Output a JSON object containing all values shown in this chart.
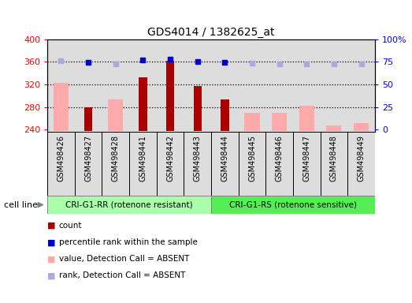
{
  "title": "GDS4014 / 1382625_at",
  "samples": [
    "GSM498426",
    "GSM498427",
    "GSM498428",
    "GSM498441",
    "GSM498442",
    "GSM498443",
    "GSM498444",
    "GSM498445",
    "GSM498446",
    "GSM498447",
    "GSM498448",
    "GSM498449"
  ],
  "group1_count": 6,
  "group2_count": 6,
  "group1_label": "CRI-G1-RR (rotenone resistant)",
  "group2_label": "CRI-G1-RS (rotenone sensitive)",
  "cell_line_label": "cell line",
  "count_values": [
    null,
    280,
    null,
    332,
    362,
    317,
    293,
    null,
    null,
    null,
    null,
    null
  ],
  "rank_values": [
    null,
    359,
    null,
    363,
    365,
    360,
    359,
    null,
    null,
    null,
    null,
    null
  ],
  "absent_value_values": [
    323,
    null,
    293,
    null,
    null,
    null,
    null,
    270,
    270,
    282,
    247,
    252
  ],
  "absent_rank_values": [
    362,
    null,
    357,
    null,
    null,
    null,
    null,
    358,
    357,
    357,
    356,
    357
  ],
  "ylim_left": [
    236,
    400
  ],
  "yticks_left": [
    240,
    280,
    320,
    360,
    400
  ],
  "ytick_labels_right": [
    "0",
    "25",
    "50",
    "75",
    "100%"
  ],
  "grid_values": [
    280,
    320,
    360
  ],
  "bar_bottom": 237,
  "count_color": "#aa0000",
  "rank_color": "#0000cc",
  "absent_value_color": "#ffaaaa",
  "absent_rank_color": "#aaaadd",
  "bg_color": "#dddddd",
  "group1_bg": "#aaffaa",
  "group2_bg": "#55ee55"
}
